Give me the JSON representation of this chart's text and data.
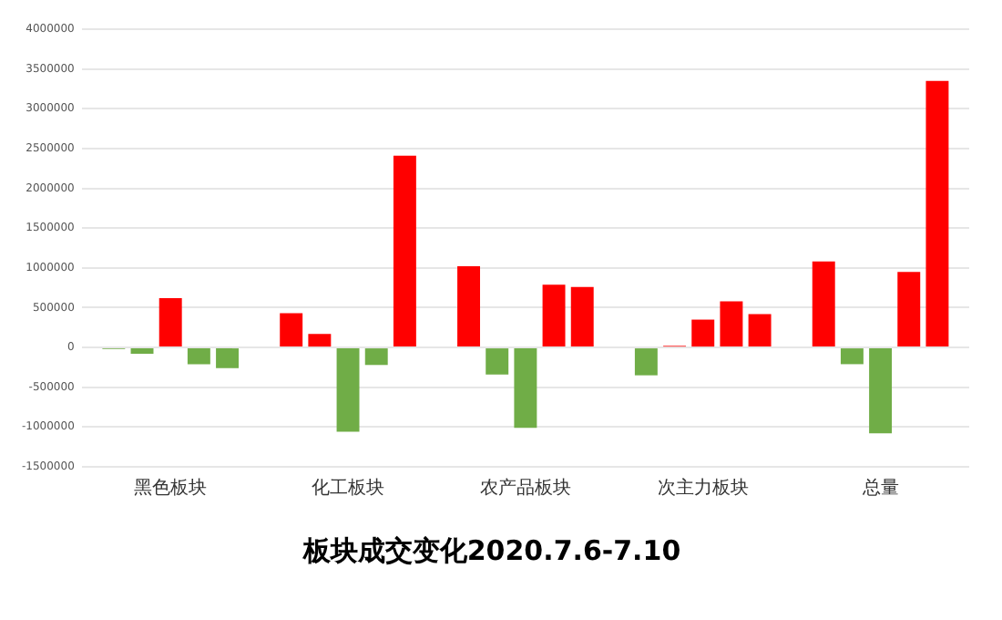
{
  "chart_data": {
    "type": "bar",
    "title": "板块成交变化2020.7.6-7.10",
    "categories": [
      "黑色板块",
      "化工板块",
      "农产品板块",
      "次主力板块",
      "总量"
    ],
    "series": [
      {
        "colors": [
          "#70ad47",
          "#ff0000",
          "#ff0000",
          "#70ad47",
          "#ff0000"
        ],
        "values": [
          -20000,
          430000,
          1020000,
          -350000,
          1080000
        ]
      },
      {
        "colors": [
          "#70ad47",
          "#ff0000",
          "#70ad47",
          "#ff0000",
          "#70ad47"
        ],
        "values": [
          -80000,
          170000,
          -340000,
          20000,
          -210000
        ]
      },
      {
        "colors": [
          "#ff0000",
          "#70ad47",
          "#70ad47",
          "#ff0000",
          "#70ad47"
        ],
        "values": [
          620000,
          -1060000,
          -1010000,
          350000,
          -1080000
        ]
      },
      {
        "colors": [
          "#70ad47",
          "#70ad47",
          "#ff0000",
          "#ff0000",
          "#ff0000"
        ],
        "values": [
          -210000,
          -220000,
          790000,
          580000,
          950000
        ]
      },
      {
        "colors": [
          "#70ad47",
          "#ff0000",
          "#ff0000",
          "#ff0000",
          "#ff0000"
        ],
        "values": [
          -260000,
          2410000,
          760000,
          420000,
          3350000
        ]
      }
    ],
    "ylim": [
      -1500000,
      4000000
    ],
    "yticks": [
      -1500000,
      -1000000,
      -500000,
      0,
      500000,
      1000000,
      1500000,
      2000000,
      2500000,
      3000000,
      3500000,
      4000000
    ],
    "grid": "y",
    "legend": false
  }
}
